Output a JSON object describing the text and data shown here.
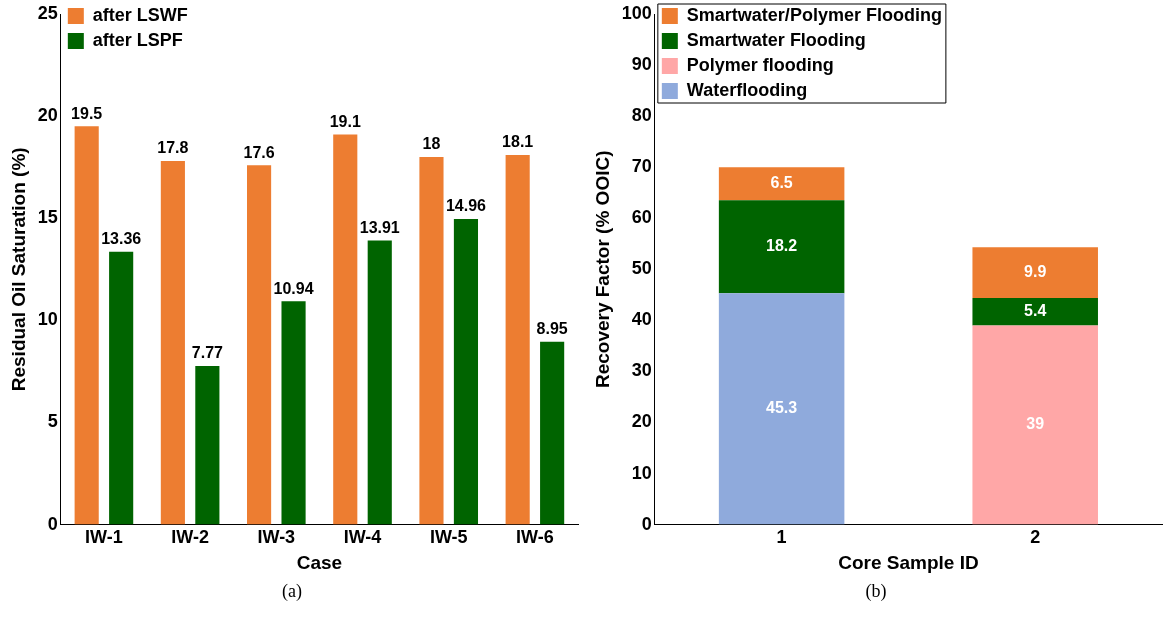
{
  "chart_data": [
    {
      "type": "bar",
      "xlabel": "Case",
      "ylabel": "Residual Oil Saturation (%)",
      "categories": [
        "IW-1",
        "IW-2",
        "IW-3",
        "IW-4",
        "IW-5",
        "IW-6"
      ],
      "series": [
        {
          "name": "after LSWF",
          "color": "#ed7d31",
          "values": [
            19.5,
            17.8,
            17.6,
            19.1,
            18,
            18.1
          ]
        },
        {
          "name": "after LSPF",
          "color": "#006400",
          "values": [
            13.36,
            7.77,
            10.94,
            13.91,
            14.96,
            8.95
          ]
        }
      ],
      "ylim": [
        0,
        25
      ],
      "yticks": [
        0,
        5,
        10,
        15,
        20,
        25
      ],
      "grid": false,
      "legend": "top left",
      "data_labels": true,
      "annotations": [
        "(a)"
      ]
    },
    {
      "type": "bar",
      "stacked": true,
      "xlabel": "Core Sample ID",
      "ylabel": "Recovery Factor (% OOIC)",
      "categories": [
        "1",
        "2"
      ],
      "series": [
        {
          "name": "Waterflooding",
          "color": "#8faadc",
          "values": [
            45.3,
            null
          ]
        },
        {
          "name": "Polymer flooding",
          "color": "#ffa7a7",
          "values": [
            null,
            39
          ]
        },
        {
          "name": "Smartwater Flooding",
          "color": "#006400",
          "values": [
            18.2,
            5.4
          ]
        },
        {
          "name": "Smartwater/Polymer Flooding",
          "color": "#ed7d31",
          "values": [
            6.5,
            9.9
          ]
        }
      ],
      "ylim": [
        0,
        100
      ],
      "yticks": [
        0,
        10,
        20,
        30,
        40,
        50,
        60,
        70,
        80,
        90,
        100
      ],
      "grid": false,
      "legend": "top left",
      "data_labels": true,
      "annotations": [
        "(b)"
      ]
    }
  ]
}
